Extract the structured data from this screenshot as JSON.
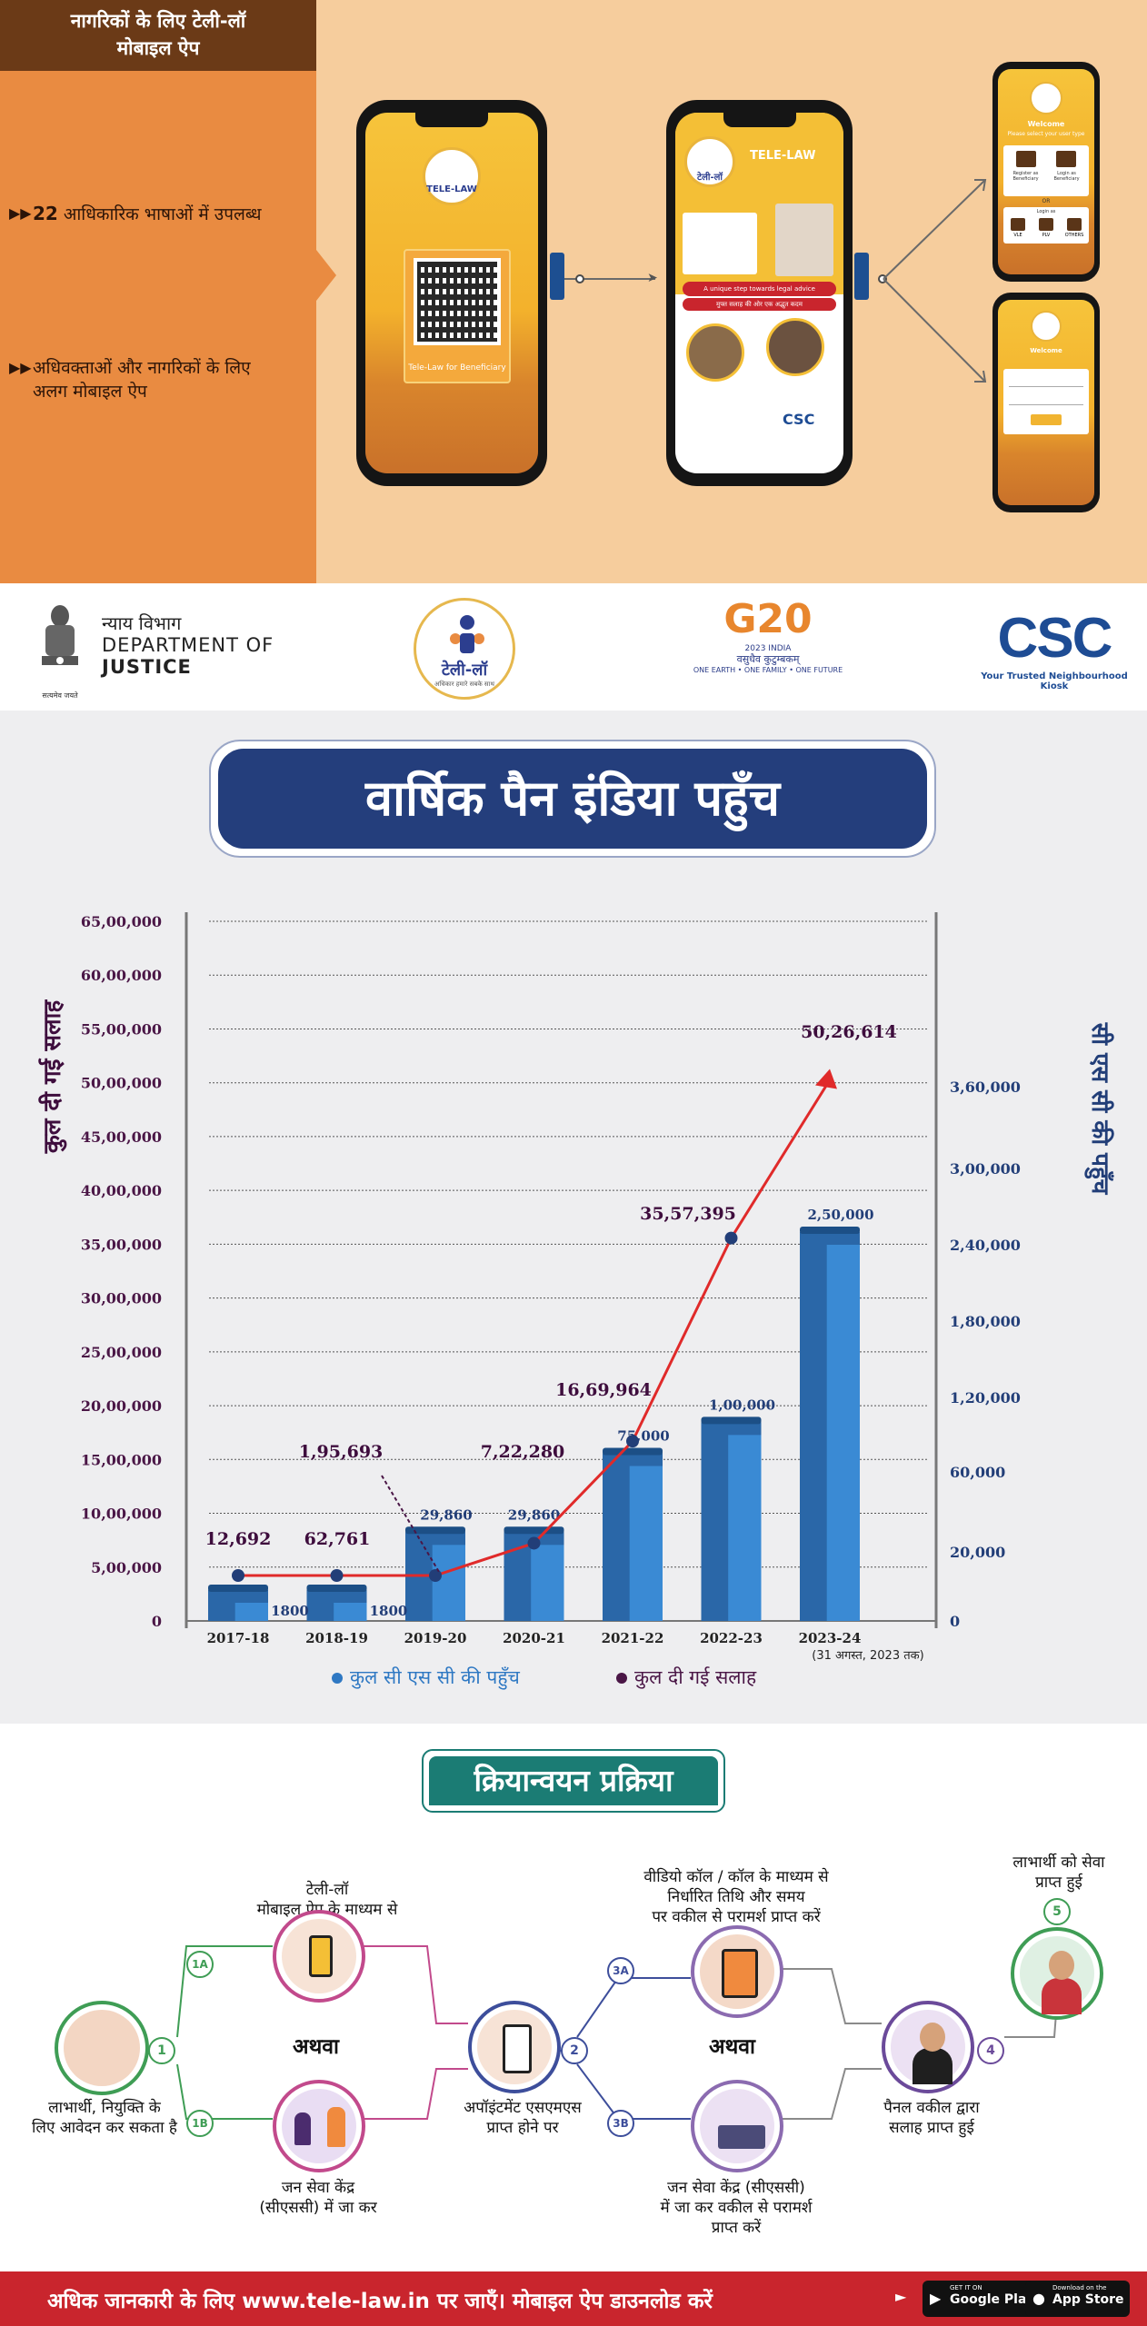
{
  "top": {
    "title_line1": "नागरिकों के लिए टेली-लॉ",
    "title_line2": "मोबाइल ऐप",
    "feature1_number": "22",
    "feature1_text": "आधिकारिक भाषाओं में उपलब्ध",
    "feature2_line1": "अधिवक्ताओं और नागरिकों के लिए",
    "feature2_line2": "अलग मोबाइल ऐप",
    "phone1": {
      "logo_text": "TELE-LAW",
      "qr_label": "Tele-Law for Beneficiary"
    },
    "phone2": {
      "brand": "TELE-LAW",
      "brand_sub": "टेली-लॉ",
      "strip1": "A unique step towards legal advice",
      "strip2": "मुफ्त सलाह की ओर एक अद्भुत कदम",
      "csc": "CSC"
    },
    "phone3": {
      "welcome": "Welcome",
      "prompt": "Please select your user type",
      "opt1": "Register as Beneficiary",
      "opt2": "Login as Beneficiary",
      "or": "OR",
      "login_as": "Login as",
      "roles": [
        "VLE",
        "PLV",
        "OTHERS"
      ]
    },
    "phone4": {
      "welcome": "Welcome"
    }
  },
  "logos": {
    "doj_hindi": "न्याय विभाग",
    "doj_line1": "DEPARTMENT OF",
    "doj_line2": "JUSTICE",
    "emblem_caption": "सत्यमेव जयते",
    "telelaw_hindi": "टेली-लॉ",
    "telelaw_tagline": "अधिकार हमारे सबके साथ",
    "g20_main": "G20",
    "g20_year": "2023 INDIA",
    "g20_hindi": "वसुधैव कुटुम्बकम्",
    "g20_tagline": "ONE EARTH • ONE FAMILY • ONE FUTURE",
    "csc_main": "CSC",
    "csc_tagline": "Your Trusted Neighbourhood Kiosk"
  },
  "chart_section": {
    "banner": "वार्षिक पैन इंडिया पहुँच",
    "left_axis_title": "कुल दी गई सलाह",
    "right_axis_title": "सी एस सी की पहुँच",
    "legend_csc": "कुल सी एस सी की पहुँच",
    "legend_advice": "कुल दी गई सलाह",
    "last_year_note": "(31 अगस्त, 2023 तक)"
  },
  "chart_data": {
    "type": "bar",
    "categories": [
      "2017-18",
      "2018-19",
      "2019-20",
      "2020-21",
      "2021-22",
      "2022-23",
      "2023-24"
    ],
    "left_axis_ticks": [
      "0",
      "5,00,000",
      "10,00,000",
      "15,00,000",
      "20,00,000",
      "25,00,000",
      "30,00,000",
      "35,00,000",
      "40,00,000",
      "45,00,000",
      "50,00,000",
      "55,00,000",
      "60,00,000",
      "65,00,000"
    ],
    "right_axis_ticks": [
      "0",
      "20,000",
      "60,000",
      "1,20,000",
      "1,80,000",
      "2,40,000",
      "3,00,000",
      "3,60,000"
    ],
    "series": [
      {
        "name": "कुल सी एस सी की पहुँच",
        "mark": "bar",
        "color": "#2e78c3",
        "values": [
          1800,
          1800,
          29860,
          29860,
          75000,
          100000,
          250000
        ],
        "labels": [
          "1800",
          "1800",
          "29,860",
          "29,860",
          "75,000",
          "1,00,000",
          "2,50,000"
        ]
      },
      {
        "name": "कुल दी गई सलाह",
        "mark": "line",
        "color": "#e02a2a",
        "values": [
          12692,
          62761,
          195693,
          722280,
          1669964,
          3557395,
          5026614
        ],
        "labels": [
          "12,692",
          "62,761",
          "1,95,693",
          "7,22,280",
          "16,69,964",
          "35,57,395",
          "50,26,614"
        ]
      }
    ]
  },
  "process": {
    "title": "क्रियान्वयन प्रक्रिया",
    "step_start_text_line1": "लाभार्थी, नियुक्ति के",
    "step_start_text_line2": "लिए आवेदन कर सकता है",
    "app_text_line1": "टेली-लॉ",
    "app_text_line2": "मोबाइल ऐप के माध्यम से",
    "or_1": "अथवा",
    "csc_text_line1": "जन सेवा केंद्र",
    "csc_text_line2": "(सीएससी) में जा कर",
    "sms_text_line1": "अपॉइंटमेंट एसएमएस",
    "sms_text_line2": "प्राप्त होने पर",
    "call_text_line1": "वीडियो कॉल / कॉल के माध्यम से",
    "call_text_line2": "निर्धारित तिथि और समय",
    "call_text_line3": "पर वकील से परामर्श प्राप्त करें",
    "or_2": "अथवा",
    "csc2_text_line1": "जन सेवा केंद्र (सीएससी)",
    "csc2_text_line2": "में जा कर वकील से परामर्श",
    "csc2_text_line3": "प्राप्त करें",
    "panel_text_line1": "पैनल वकील द्वारा",
    "panel_text_line2": "सलाह प्राप्त हुई",
    "final_text_line1": "लाभार्थी को सेवा",
    "final_text_line2": "प्राप्त हुई",
    "num_1": "1",
    "num_1a": "1A",
    "num_1b": "1B",
    "num_2": "2",
    "num_3a": "3A",
    "num_3b": "3B",
    "num_4": "4",
    "num_5": "5"
  },
  "footer": {
    "message": "अधिक जानकारी के लिए www.tele-law.in पर जाएँ।   मोबाइल ऐप डाउनलोड करें",
    "google_small": "GET IT ON",
    "google_label": "Google Play",
    "apple_small": "Download on the",
    "apple_label": "App Store"
  }
}
